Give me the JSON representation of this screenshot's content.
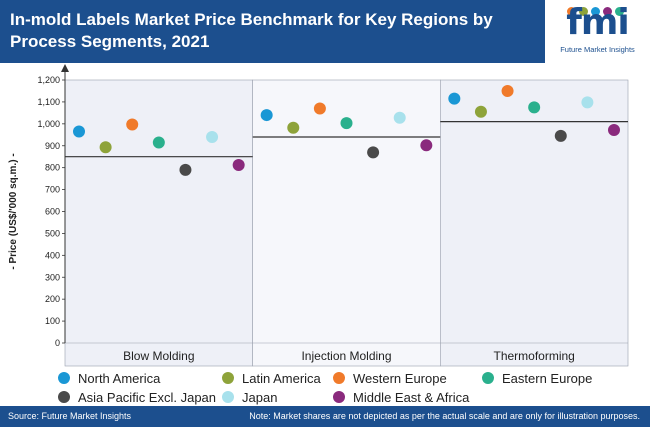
{
  "header": {
    "title": "In-mold Labels Market Price Benchmark for Key Regions by Process Segments, 2021",
    "logo_text": "fmi",
    "logo_subtext": "Future Market Insights"
  },
  "footer": {
    "source": "Source: Future Market Insights",
    "note": "Note: Market shares are not depicted as per the actual scale and are only for illustration purposes."
  },
  "colors": {
    "header_bg": "#1c4f8e",
    "panel_shade": "#eef0f7",
    "benchmark_line": "#333333"
  },
  "chart_data": {
    "type": "scatter",
    "title": "In-mold Labels Market Price Benchmark for Key Regions by Process Segments, 2021",
    "ylabel": "- Price (US$/'000 sq.m.) -",
    "ylim": [
      0,
      1200
    ],
    "yticks": [
      "0",
      "100",
      "200",
      "300",
      "400",
      "500",
      "600",
      "700",
      "800",
      "900",
      "1,000",
      "1,100",
      "1,200"
    ],
    "categories": [
      "Blow Molding",
      "Injection Molding",
      "Thermoforming"
    ],
    "legend_position": "bottom",
    "series": [
      {
        "name": "North America",
        "color": "#1a97d5",
        "values": [
          965,
          1040,
          1115
        ]
      },
      {
        "name": "Latin America",
        "color": "#8ea33a",
        "values": [
          893,
          982,
          1055
        ]
      },
      {
        "name": "Western Europe",
        "color": "#f07a2a",
        "values": [
          997,
          1070,
          1150
        ]
      },
      {
        "name": "Eastern Europe",
        "color": "#2ab08d",
        "values": [
          915,
          1003,
          1075
        ]
      },
      {
        "name": "Asia Pacific Excl. Japan",
        "color": "#4a4a4a",
        "values": [
          790,
          870,
          945
        ]
      },
      {
        "name": "Japan",
        "color": "#a8e1ec",
        "values": [
          940,
          1028,
          1098
        ]
      },
      {
        "name": "Middle East & Africa",
        "color": "#8a2a7d",
        "values": [
          812,
          902,
          972
        ]
      }
    ],
    "benchmarks": [
      850,
      940,
      1010
    ]
  }
}
